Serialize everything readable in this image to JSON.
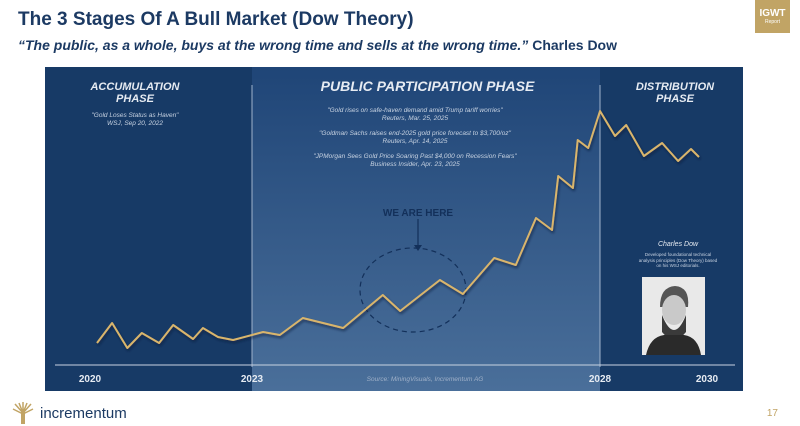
{
  "header": {
    "title": "The 3 Stages Of A Bull Market (Dow Theory)",
    "quote": "“The public, as a whole, buys at the wrong time and sells at the wrong time.”",
    "quote_author": "Charles Dow",
    "badge_title": "IGWT",
    "badge_sub": "Report"
  },
  "chart_data": {
    "type": "line",
    "x_ticks": [
      "2020",
      "2023",
      "2028",
      "2030"
    ],
    "xlim": [
      2020,
      2030
    ],
    "grid": false,
    "line_color": "#d9b56c",
    "x": [
      2020.13,
      2020.41,
      2020.69,
      2020.96,
      2021.28,
      2021.54,
      2021.91,
      2022.09,
      2022.37,
      2022.65,
      2023.16,
      2023.4,
      2023.73,
      2024.31,
      2024.88,
      2025.13,
      2025.7,
      2026.03,
      2026.48,
      2026.79,
      2027.08,
      2027.31,
      2027.4,
      2027.61,
      2027.68,
      2027.83,
      2028.0,
      2028.28,
      2028.49,
      2028.82,
      2029.16,
      2029.46,
      2029.7,
      2029.85
    ],
    "y": [
      22,
      42,
      17,
      32,
      22,
      40,
      26,
      37,
      28,
      25,
      33,
      30,
      47,
      37,
      70,
      54,
      85,
      71,
      107,
      100,
      147,
      135,
      189,
      177,
      225,
      217,
      254,
      229,
      240,
      209,
      222,
      204,
      216,
      208
    ],
    "phases": [
      {
        "name": "ACCUMULATION\nPHASE",
        "quotes": [
          {
            "text": "\"Gold Loses Status as Haven\"",
            "source": "WSJ, Sep 20, 2022"
          }
        ]
      },
      {
        "name": "PUBLIC PARTICIPATION PHASE",
        "quotes": [
          {
            "text": "\"Gold rises on safe-haven demand amid Trump tariff worries\"",
            "source": "Reuters, Mar. 25, 2025"
          },
          {
            "text": "\"Goldman Sachs raises end-2025 gold price forecast to $3,700/oz\"",
            "source": "Reuters, Apr. 14, 2025"
          },
          {
            "text": "\"JPMorgan Sees Gold Price Soaring Past $4,000 on Recession Fears\"",
            "source": "Business Insider, Apr. 23, 2025"
          }
        ]
      },
      {
        "name": "DISTRIBUTION\nPHASE",
        "quotes": []
      }
    ],
    "annotation": "WE ARE HERE",
    "source": "Source: MiningVisuals, Incrementum AG",
    "portrait": {
      "name": "Charles Dow",
      "caption": "Developed foundational technical analysis principles (Dow Theory) based on his WSJ editorials."
    }
  },
  "footer": {
    "brand": "incrementum",
    "page": "17"
  }
}
